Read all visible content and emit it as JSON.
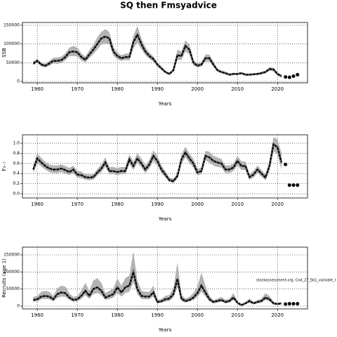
{
  "title": "SQ then Fmsyadvice",
  "chart_data": [
    {
      "type": "line",
      "ylabel": "SSB",
      "xlabel": "Years",
      "x": [
        1959,
        1960,
        1961,
        1962,
        1963,
        1964,
        1965,
        1966,
        1967,
        1968,
        1969,
        1970,
        1971,
        1972,
        1973,
        1974,
        1975,
        1976,
        1977,
        1978,
        1979,
        1980,
        1981,
        1982,
        1983,
        1984,
        1985,
        1986,
        1987,
        1988,
        1989,
        1990,
        1991,
        1992,
        1993,
        1994,
        1995,
        1996,
        1997,
        1998,
        1999,
        2000,
        2001,
        2002,
        2003,
        2004,
        2005,
        2006,
        2007,
        2008,
        2009,
        2010,
        2011,
        2012,
        2013,
        2014,
        2015,
        2016,
        2017,
        2018,
        2019,
        2020,
        2021
      ],
      "series": [
        {
          "name": "estimate",
          "color": "#000000",
          "values": [
            48000,
            55000,
            45000,
            42000,
            48000,
            55000,
            55000,
            57000,
            65000,
            78000,
            80000,
            78000,
            65000,
            58000,
            72000,
            85000,
            100000,
            115000,
            120000,
            115000,
            80000,
            68000,
            62000,
            65000,
            65000,
            105000,
            125000,
            100000,
            80000,
            68000,
            60000,
            45000,
            35000,
            25000,
            20000,
            30000,
            70000,
            68000,
            95000,
            85000,
            50000,
            42000,
            45000,
            62000,
            62000,
            45000,
            30000,
            25000,
            22000,
            18000,
            20000,
            20000,
            22000,
            18000,
            18000,
            19000,
            20000,
            22000,
            25000,
            33000,
            32000,
            20000,
            14000
          ]
        },
        {
          "name": "upper",
          "color": "#b3b3b3",
          "values": [
            54000,
            60000,
            50000,
            47000,
            55000,
            63000,
            64000,
            66000,
            75000,
            90000,
            95000,
            90000,
            75000,
            66000,
            83000,
            98000,
            118000,
            132000,
            140000,
            132000,
            92000,
            77000,
            70000,
            74000,
            75000,
            122000,
            148000,
            115000,
            91000,
            77000,
            67000,
            51000,
            40000,
            29000,
            23000,
            35000,
            85000,
            80000,
            110000,
            98000,
            58000,
            48000,
            51000,
            72000,
            72000,
            52000,
            34000,
            29000,
            26000,
            21000,
            23000,
            23000,
            25000,
            21000,
            21000,
            22000,
            23000,
            26000,
            29000,
            38000,
            37000,
            24000,
            19000
          ]
        },
        {
          "name": "lower",
          "color": "#b3b3b3",
          "values": [
            43000,
            50000,
            40000,
            37000,
            42000,
            48000,
            47000,
            49000,
            56000,
            67000,
            68000,
            67000,
            56000,
            51000,
            62000,
            73000,
            85000,
            99000,
            102000,
            99000,
            69000,
            59000,
            55000,
            57000,
            56000,
            88000,
            104000,
            86000,
            70000,
            60000,
            53000,
            40000,
            31000,
            22000,
            17000,
            26000,
            58000,
            57000,
            80000,
            73000,
            43000,
            37000,
            40000,
            53000,
            53000,
            39000,
            26000,
            22000,
            19000,
            16000,
            17000,
            17000,
            19000,
            16000,
            16000,
            17000,
            17000,
            19000,
            22000,
            29000,
            27000,
            16000,
            10000
          ]
        },
        {
          "name": "projection",
          "color": "#000000",
          "x": [
            2022,
            2023,
            2024,
            2025
          ],
          "values": [
            12000,
            11000,
            14000,
            18000
          ]
        }
      ],
      "xlim": [
        1956.3,
        2027.5
      ],
      "xticks": [
        1960,
        1970,
        1980,
        1990,
        2000,
        2010,
        2020
      ],
      "ylim": [
        -3750,
        157500
      ],
      "yticks": [
        0,
        50000,
        100000,
        150000
      ],
      "grid": true
    },
    {
      "type": "line",
      "ylabel": "F₃₋₇",
      "xlabel": "Years",
      "x": [
        1959,
        1960,
        1961,
        1962,
        1963,
        1964,
        1965,
        1966,
        1967,
        1968,
        1969,
        1970,
        1971,
        1972,
        1973,
        1974,
        1975,
        1976,
        1977,
        1978,
        1979,
        1980,
        1981,
        1982,
        1983,
        1984,
        1985,
        1986,
        1987,
        1988,
        1989,
        1990,
        1991,
        1992,
        1993,
        1994,
        1995,
        1996,
        1997,
        1998,
        1999,
        2000,
        2001,
        2002,
        2003,
        2004,
        2005,
        2006,
        2007,
        2008,
        2009,
        2010,
        2011,
        2012,
        2013,
        2014,
        2015,
        2016,
        2017,
        2018,
        2019,
        2020,
        2021
      ],
      "series": [
        {
          "name": "estimate",
          "color": "#000000",
          "values": [
            0.48,
            0.7,
            0.62,
            0.55,
            0.5,
            0.48,
            0.48,
            0.5,
            0.47,
            0.43,
            0.48,
            0.38,
            0.37,
            0.33,
            0.32,
            0.33,
            0.42,
            0.5,
            0.62,
            0.45,
            0.45,
            0.43,
            0.45,
            0.45,
            0.68,
            0.55,
            0.7,
            0.6,
            0.48,
            0.58,
            0.75,
            0.65,
            0.48,
            0.38,
            0.27,
            0.25,
            0.35,
            0.68,
            0.82,
            0.7,
            0.6,
            0.42,
            0.45,
            0.75,
            0.72,
            0.65,
            0.62,
            0.6,
            0.48,
            0.48,
            0.52,
            0.65,
            0.55,
            0.55,
            0.33,
            0.38,
            0.48,
            0.4,
            0.32,
            0.55,
            0.98,
            0.92,
            0.62
          ]
        },
        {
          "name": "upper",
          "color": "#b3b3b3",
          "values": [
            0.56,
            0.8,
            0.71,
            0.63,
            0.58,
            0.56,
            0.56,
            0.58,
            0.55,
            0.51,
            0.56,
            0.45,
            0.44,
            0.39,
            0.38,
            0.39,
            0.49,
            0.58,
            0.72,
            0.53,
            0.53,
            0.51,
            0.53,
            0.53,
            0.78,
            0.64,
            0.8,
            0.7,
            0.56,
            0.67,
            0.86,
            0.75,
            0.56,
            0.45,
            0.32,
            0.3,
            0.41,
            0.78,
            0.93,
            0.8,
            0.69,
            0.49,
            0.52,
            0.85,
            0.83,
            0.75,
            0.72,
            0.69,
            0.56,
            0.56,
            0.6,
            0.75,
            0.64,
            0.64,
            0.39,
            0.45,
            0.56,
            0.47,
            0.38,
            0.66,
            1.12,
            1.08,
            0.8
          ]
        },
        {
          "name": "lower",
          "color": "#b3b3b3",
          "values": [
            0.41,
            0.61,
            0.54,
            0.48,
            0.43,
            0.41,
            0.41,
            0.43,
            0.4,
            0.37,
            0.41,
            0.32,
            0.31,
            0.28,
            0.27,
            0.28,
            0.36,
            0.43,
            0.54,
            0.39,
            0.39,
            0.37,
            0.39,
            0.39,
            0.59,
            0.47,
            0.61,
            0.52,
            0.41,
            0.5,
            0.65,
            0.56,
            0.41,
            0.32,
            0.23,
            0.21,
            0.3,
            0.59,
            0.72,
            0.61,
            0.52,
            0.36,
            0.39,
            0.66,
            0.62,
            0.56,
            0.53,
            0.52,
            0.41,
            0.41,
            0.45,
            0.56,
            0.47,
            0.47,
            0.28,
            0.32,
            0.41,
            0.34,
            0.27,
            0.46,
            0.85,
            0.78,
            0.48
          ]
        },
        {
          "name": "projection",
          "color": "#000000",
          "x": [
            2022,
            2023,
            2024,
            2025
          ],
          "values": [
            0.58,
            0.17,
            0.17,
            0.17
          ]
        }
      ],
      "xlim": [
        1956.3,
        2027.5
      ],
      "xticks": [
        1960,
        1970,
        1980,
        1990,
        2000,
        2010,
        2020
      ],
      "ylim": [
        -0.083,
        1.167
      ],
      "yticks": [
        {
          "value": 0,
          "label": "0.0"
        },
        0.2,
        0.4,
        0.6,
        0.8,
        {
          "value": 1,
          "label": "1.0"
        }
      ],
      "grid": true
    },
    {
      "type": "line",
      "ylabel": "Recruits (age 1)",
      "xlabel": "Years",
      "annotation": "stockassessment.org, Cod_27_5b1_variable_I",
      "x": [
        1959,
        1960,
        1961,
        1962,
        1963,
        1964,
        1965,
        1966,
        1967,
        1968,
        1969,
        1970,
        1971,
        1972,
        1973,
        1974,
        1975,
        1976,
        1977,
        1978,
        1979,
        1980,
        1981,
        1982,
        1983,
        1984,
        1985,
        1986,
        1987,
        1988,
        1989,
        1990,
        1991,
        1992,
        1993,
        1994,
        1995,
        1996,
        1997,
        1998,
        1999,
        2000,
        2001,
        2002,
        2003,
        2004,
        2005,
        2006,
        2007,
        2008,
        2009,
        2010,
        2011,
        2012,
        2013,
        2014,
        2015,
        2016,
        2017,
        2018,
        2019,
        2020,
        2021
      ],
      "series": [
        {
          "name": "estimate",
          "color": "#000000",
          "values": [
            18000,
            20000,
            28000,
            30000,
            28000,
            20000,
            35000,
            40000,
            38000,
            25000,
            18000,
            20000,
            30000,
            45000,
            30000,
            50000,
            55000,
            45000,
            25000,
            30000,
            35000,
            55000,
            40000,
            55000,
            60000,
            100000,
            50000,
            30000,
            28000,
            28000,
            40000,
            12000,
            14000,
            20000,
            22000,
            35000,
            80000,
            22000,
            15000,
            18000,
            25000,
            38000,
            60000,
            40000,
            20000,
            12000,
            15000,
            18000,
            12000,
            15000,
            25000,
            10000,
            3000,
            8000,
            15000,
            8000,
            12000,
            15000,
            25000,
            20000,
            8000,
            6000,
            8000
          ]
        },
        {
          "name": "upper",
          "color": "#b3b3b3",
          "values": [
            27000,
            30000,
            42000,
            45000,
            42000,
            30000,
            52000,
            60000,
            57000,
            38000,
            27000,
            30000,
            45000,
            68000,
            45000,
            75000,
            82000,
            68000,
            38000,
            45000,
            52000,
            82000,
            60000,
            82000,
            90000,
            160000,
            75000,
            45000,
            42000,
            42000,
            60000,
            18000,
            21000,
            30000,
            33000,
            52000,
            128000,
            33000,
            22000,
            27000,
            38000,
            57000,
            98000,
            60000,
            30000,
            18000,
            22000,
            27000,
            18000,
            22000,
            38000,
            15000,
            5000,
            12000,
            22000,
            12000,
            18000,
            22000,
            38000,
            30000,
            12000,
            9000,
            12000
          ]
        },
        {
          "name": "lower",
          "color": "#b3b3b3",
          "values": [
            13000,
            14000,
            20000,
            21000,
            20000,
            14000,
            24000,
            28000,
            27000,
            18000,
            13000,
            14000,
            21000,
            32000,
            21000,
            35000,
            38000,
            32000,
            18000,
            21000,
            25000,
            38000,
            28000,
            38000,
            42000,
            70000,
            35000,
            21000,
            20000,
            20000,
            28000,
            8000,
            10000,
            14000,
            15000,
            25000,
            56000,
            15000,
            10000,
            13000,
            18000,
            27000,
            42000,
            28000,
            14000,
            8000,
            10000,
            13000,
            8000,
            10000,
            18000,
            7000,
            2000,
            6000,
            10000,
            6000,
            8000,
            10000,
            18000,
            14000,
            6000,
            4000,
            6000
          ]
        },
        {
          "name": "projection",
          "color": "#000000",
          "x": [
            2022,
            2023,
            2024,
            2025
          ],
          "values": [
            6000,
            7000,
            7000,
            7000
          ]
        }
      ],
      "xlim": [
        1956.3,
        2027.5
      ],
      "xticks": [
        1960,
        1970,
        1980,
        1990,
        2000,
        2010,
        2020
      ],
      "ylim": [
        -8200,
        172600
      ],
      "yticks": [
        0,
        50000,
        100000,
        150000
      ],
      "grid": true
    }
  ]
}
